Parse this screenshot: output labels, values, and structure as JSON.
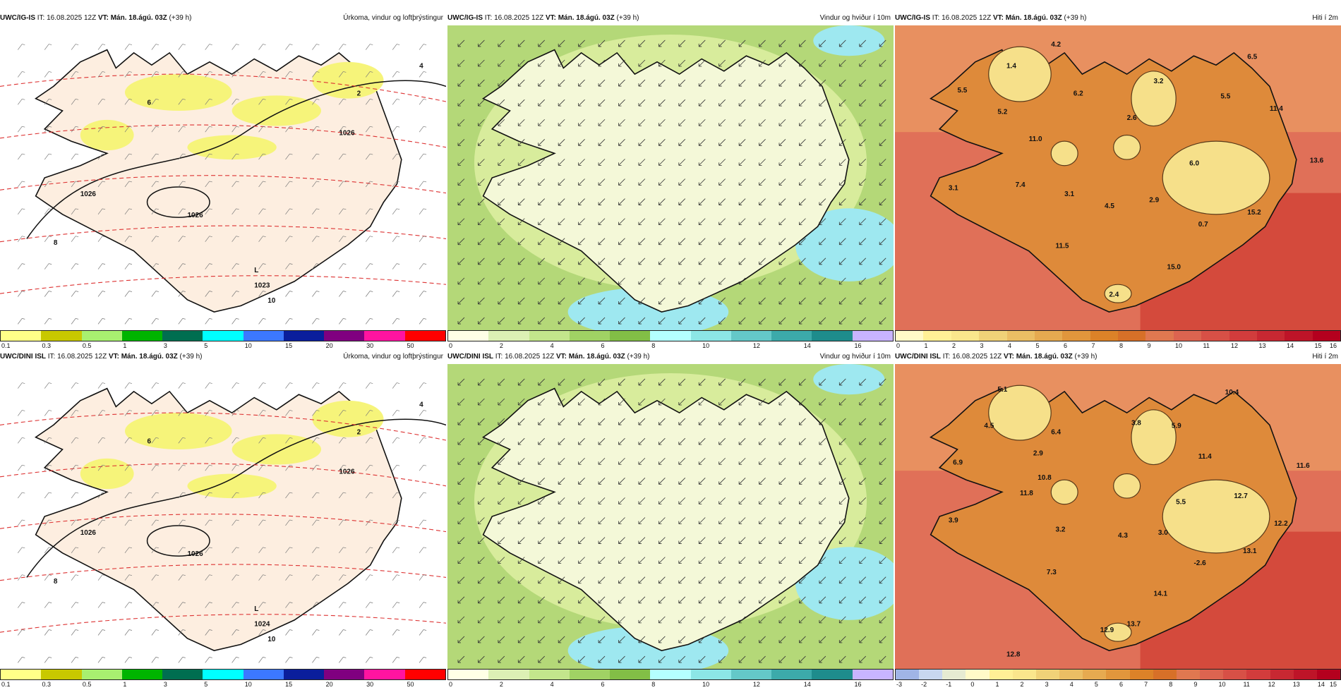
{
  "panels": [
    {
      "model": "UWC/IG-IS",
      "it": "IT: 16.08.2025 12Z",
      "vt": "VT: Mán. 18.ágú. 03Z",
      "lead": "(+39 h)",
      "title": "Úrkoma, vindur og loftþrýstingur",
      "kind": "precip",
      "scale_colors": [
        "#ffff88",
        "#c8c800",
        "#a8f070",
        "#00b400",
        "#006e50",
        "#00ffff",
        "#3c78ff",
        "#0a1e9c",
        "#800080",
        "#ff14a0",
        "#ff0000"
      ],
      "scale_ticks": [
        "0.1",
        "0.3",
        "0.5",
        "1",
        "3",
        "5",
        "10",
        "15",
        "20",
        "30",
        "50"
      ],
      "map_labels": [
        {
          "text": "L"
        },
        {
          "text": "1023"
        },
        {
          "text": "1026"
        },
        {
          "text": "1026"
        },
        {
          "text": "1026"
        },
        {
          "text": "6"
        },
        {
          "text": "8"
        },
        {
          "text": "10"
        },
        {
          "text": "4"
        },
        {
          "text": "2"
        }
      ]
    },
    {
      "model": "UWC/IG-IS",
      "it": "IT: 16.08.2025 12Z",
      "vt": "VT: Mán. 18.ágú. 03Z",
      "lead": "(+39 h)",
      "title": "Vindur og hviður í 10m",
      "kind": "wind",
      "scale_colors": [
        "#ffffe6",
        "#dcf0b4",
        "#c3e68c",
        "#a0d264",
        "#82be46",
        "#b4ffff",
        "#8ce6e6",
        "#64c8c8",
        "#3caaaa",
        "#1e8c8c",
        "#c8b4ff"
      ],
      "scale_ticks": [
        "0",
        "2",
        "4",
        "6",
        "8",
        "10",
        "12",
        "14",
        "16"
      ],
      "map_labels": []
    },
    {
      "model": "UWC/IG-IS",
      "it": "IT: 16.08.2025 12Z",
      "vt": "VT: Mán. 18.ágú. 03Z",
      "lead": "(+39 h)",
      "title": "Hiti í 2m",
      "kind": "temp",
      "scale_colors": [
        "#fffac8",
        "#fff096",
        "#fae68c",
        "#f0d278",
        "#ebbe64",
        "#e6aa50",
        "#e1963c",
        "#dc8228",
        "#d77028",
        "#e07850",
        "#dc6450",
        "#d75046",
        "#d23c3c",
        "#c82832",
        "#be1428",
        "#b4001e"
      ],
      "scale_ticks": [
        "0",
        "1",
        "2",
        "3",
        "4",
        "5",
        "6",
        "7",
        "8",
        "9",
        "10",
        "11",
        "12",
        "13",
        "14",
        "15",
        "16"
      ],
      "map_labels": [
        {
          "text": "4.2"
        },
        {
          "text": "6.5"
        },
        {
          "text": "1.4"
        },
        {
          "text": "5.5"
        },
        {
          "text": "6.2"
        },
        {
          "text": "3.2"
        },
        {
          "text": "5.5"
        },
        {
          "text": "5.2"
        },
        {
          "text": "2.6"
        },
        {
          "text": "11.4"
        },
        {
          "text": "11.0"
        },
        {
          "text": "6.0"
        },
        {
          "text": "13.6"
        },
        {
          "text": "3.1"
        },
        {
          "text": "7.4"
        },
        {
          "text": "3.1"
        },
        {
          "text": "2.9"
        },
        {
          "text": "4.5"
        },
        {
          "text": "15.2"
        },
        {
          "text": "0.7"
        },
        {
          "text": "11.5"
        },
        {
          "text": "15.0"
        },
        {
          "text": "2.4"
        }
      ]
    },
    {
      "model": "UWC/DINI ISL",
      "it": "IT: 16.08.2025 12Z",
      "vt": "VT: Mán. 18.ágú. 03Z",
      "lead": "(+39 h)",
      "title": "Úrkoma, vindur og loftþrýstingur",
      "kind": "precip",
      "scale_colors": [
        "#ffff88",
        "#c8c800",
        "#a8f070",
        "#00b400",
        "#006e50",
        "#00ffff",
        "#3c78ff",
        "#0a1e9c",
        "#800080",
        "#ff14a0",
        "#ff0000"
      ],
      "scale_ticks": [
        "0.1",
        "0.3",
        "0.5",
        "1",
        "3",
        "5",
        "10",
        "15",
        "20",
        "30",
        "50"
      ],
      "map_labels": [
        {
          "text": "L"
        },
        {
          "text": "1024"
        },
        {
          "text": "1026"
        },
        {
          "text": "1026"
        },
        {
          "text": "1026"
        },
        {
          "text": "6"
        },
        {
          "text": "8"
        },
        {
          "text": "10"
        },
        {
          "text": "4"
        },
        {
          "text": "2"
        }
      ]
    },
    {
      "model": "UWC/DINI ISL",
      "it": "IT: 16.08.2025 12Z",
      "vt": "VT: Mán. 18.ágú. 03Z",
      "lead": "(+39 h)",
      "title": "Vindur og hviður í 10m",
      "kind": "wind",
      "scale_colors": [
        "#ffffe6",
        "#dcf0b4",
        "#c3e68c",
        "#a0d264",
        "#82be46",
        "#b4ffff",
        "#8ce6e6",
        "#64c8c8",
        "#3caaaa",
        "#1e8c8c",
        "#c8b4ff"
      ],
      "scale_ticks": [
        "0",
        "2",
        "4",
        "6",
        "8",
        "10",
        "12",
        "14",
        "16"
      ],
      "map_labels": []
    },
    {
      "model": "UWC/DINI ISL",
      "it": "IT: 16.08.2025 12Z",
      "vt": "VT: Mán. 18.ágú. 03Z",
      "lead": "(+39 h)",
      "title": "Hiti í 2m",
      "kind": "temp",
      "scale_colors": [
        "#a0b4e6",
        "#c8d7f0",
        "#e6ebd2",
        "#fffac8",
        "#fff096",
        "#fae68c",
        "#f0d278",
        "#ebbe64",
        "#e6aa50",
        "#e1963c",
        "#dc8228",
        "#d77028",
        "#e07850",
        "#dc6450",
        "#d75046",
        "#d23c3c",
        "#c82832",
        "#be1428",
        "#b4001e"
      ],
      "scale_ticks": [
        "-3",
        "-2",
        "-1",
        "0",
        "1",
        "2",
        "3",
        "4",
        "5",
        "6",
        "7",
        "8",
        "9",
        "10",
        "11",
        "12",
        "13",
        "14",
        "15"
      ],
      "map_labels": [
        {
          "text": "5.1"
        },
        {
          "text": "10.4"
        },
        {
          "text": "4.5"
        },
        {
          "text": "6.4"
        },
        {
          "text": "3.8"
        },
        {
          "text": "5.9"
        },
        {
          "text": "2.9"
        },
        {
          "text": "11.4"
        },
        {
          "text": "6.9"
        },
        {
          "text": "10.8"
        },
        {
          "text": "11.6"
        },
        {
          "text": "11.8"
        },
        {
          "text": "5.5"
        },
        {
          "text": "12.7"
        },
        {
          "text": "3.9"
        },
        {
          "text": "3.2"
        },
        {
          "text": "4.3"
        },
        {
          "text": "3.0"
        },
        {
          "text": "12.2"
        },
        {
          "text": "-2.6"
        },
        {
          "text": "13.1"
        },
        {
          "text": "7.3"
        },
        {
          "text": "14.1"
        },
        {
          "text": "12.9"
        },
        {
          "text": "13.7"
        },
        {
          "text": "12.8"
        }
      ]
    }
  ]
}
